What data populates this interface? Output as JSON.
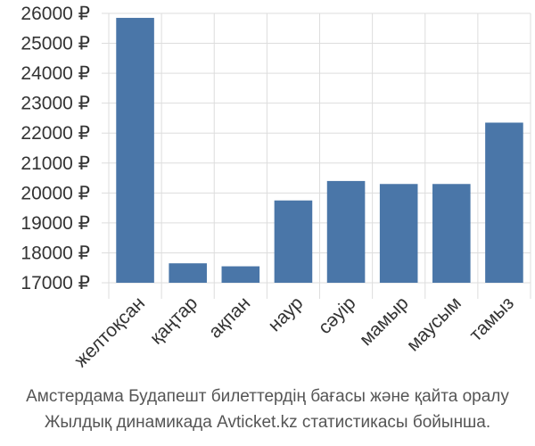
{
  "chart_data": {
    "type": "bar",
    "categories": [
      "желтоқсан",
      "қаңтар",
      "ақпан",
      "наур",
      "сәуір",
      "мамыр",
      "маусым",
      "тамыз"
    ],
    "values": [
      25850,
      17650,
      17550,
      19750,
      20400,
      20300,
      20300,
      22350
    ],
    "ylim": [
      17000,
      26000
    ],
    "yticks": [
      "17000 ₽",
      "18000 ₽",
      "19000 ₽",
      "20000 ₽",
      "21000 ₽",
      "22000 ₽",
      "23000 ₽",
      "24000 ₽",
      "25000 ₽",
      "26000 ₽"
    ],
    "bar_color": "#4a76a8",
    "grid": true
  },
  "caption": {
    "line1": "Амстердама Будапешт билеттердің бағасы және қайта оралу",
    "line2": "Жылдық динамикада Avticket.kz статистикасы бойынша."
  }
}
